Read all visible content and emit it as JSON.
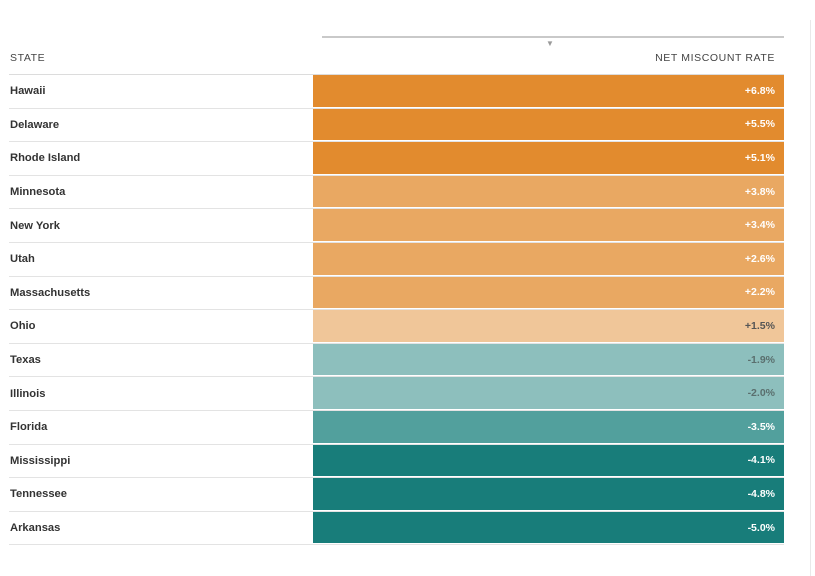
{
  "header": {
    "state_label": "STATE",
    "rate_label": "NET MISCOUNT RATE",
    "sort_icon": "caret-down-icon"
  },
  "colors": {
    "strong_over": "#e28b2e",
    "mid_over": "#e9a862",
    "light_over": "#f0c699",
    "light_under": "#8dbfbd",
    "mid_under": "#52a09d",
    "strong_under": "#187d7a"
  },
  "chart_data": {
    "type": "table",
    "columns": [
      "STATE",
      "NET MISCOUNT RATE"
    ],
    "rows": [
      {
        "state": "Hawaii",
        "rate": "+6.8%",
        "value": 6.8,
        "color": "#e28b2e",
        "text_color": "#ffffff"
      },
      {
        "state": "Delaware",
        "rate": "+5.5%",
        "value": 5.5,
        "color": "#e28b2e",
        "text_color": "#ffffff"
      },
      {
        "state": "Rhode Island",
        "rate": "+5.1%",
        "value": 5.1,
        "color": "#e28b2e",
        "text_color": "#ffffff"
      },
      {
        "state": "Minnesota",
        "rate": "+3.8%",
        "value": 3.8,
        "color": "#e9a862",
        "text_color": "#ffffff"
      },
      {
        "state": "New York",
        "rate": "+3.4%",
        "value": 3.4,
        "color": "#e9a862",
        "text_color": "#ffffff"
      },
      {
        "state": "Utah",
        "rate": "+2.6%",
        "value": 2.6,
        "color": "#e9a862",
        "text_color": "#ffffff"
      },
      {
        "state": "Massachusetts",
        "rate": "+2.2%",
        "value": 2.2,
        "color": "#e9a862",
        "text_color": "#ffffff"
      },
      {
        "state": "Ohio",
        "rate": "+1.5%",
        "value": 1.5,
        "color": "#f0c699",
        "text_color": "#555555"
      },
      {
        "state": "Texas",
        "rate": "-1.9%",
        "value": -1.9,
        "color": "#8dbfbd",
        "text_color": "#5a6f6e"
      },
      {
        "state": "Illinois",
        "rate": "-2.0%",
        "value": -2.0,
        "color": "#8dbfbd",
        "text_color": "#5a6f6e"
      },
      {
        "state": "Florida",
        "rate": "-3.5%",
        "value": -3.5,
        "color": "#52a09d",
        "text_color": "#ffffff"
      },
      {
        "state": "Mississippi",
        "rate": "-4.1%",
        "value": -4.1,
        "color": "#187d7a",
        "text_color": "#ffffff"
      },
      {
        "state": "Tennessee",
        "rate": "-4.8%",
        "value": -4.8,
        "color": "#187d7a",
        "text_color": "#ffffff"
      },
      {
        "state": "Arkansas",
        "rate": "-5.0%",
        "value": -5.0,
        "color": "#187d7a",
        "text_color": "#ffffff"
      }
    ]
  }
}
